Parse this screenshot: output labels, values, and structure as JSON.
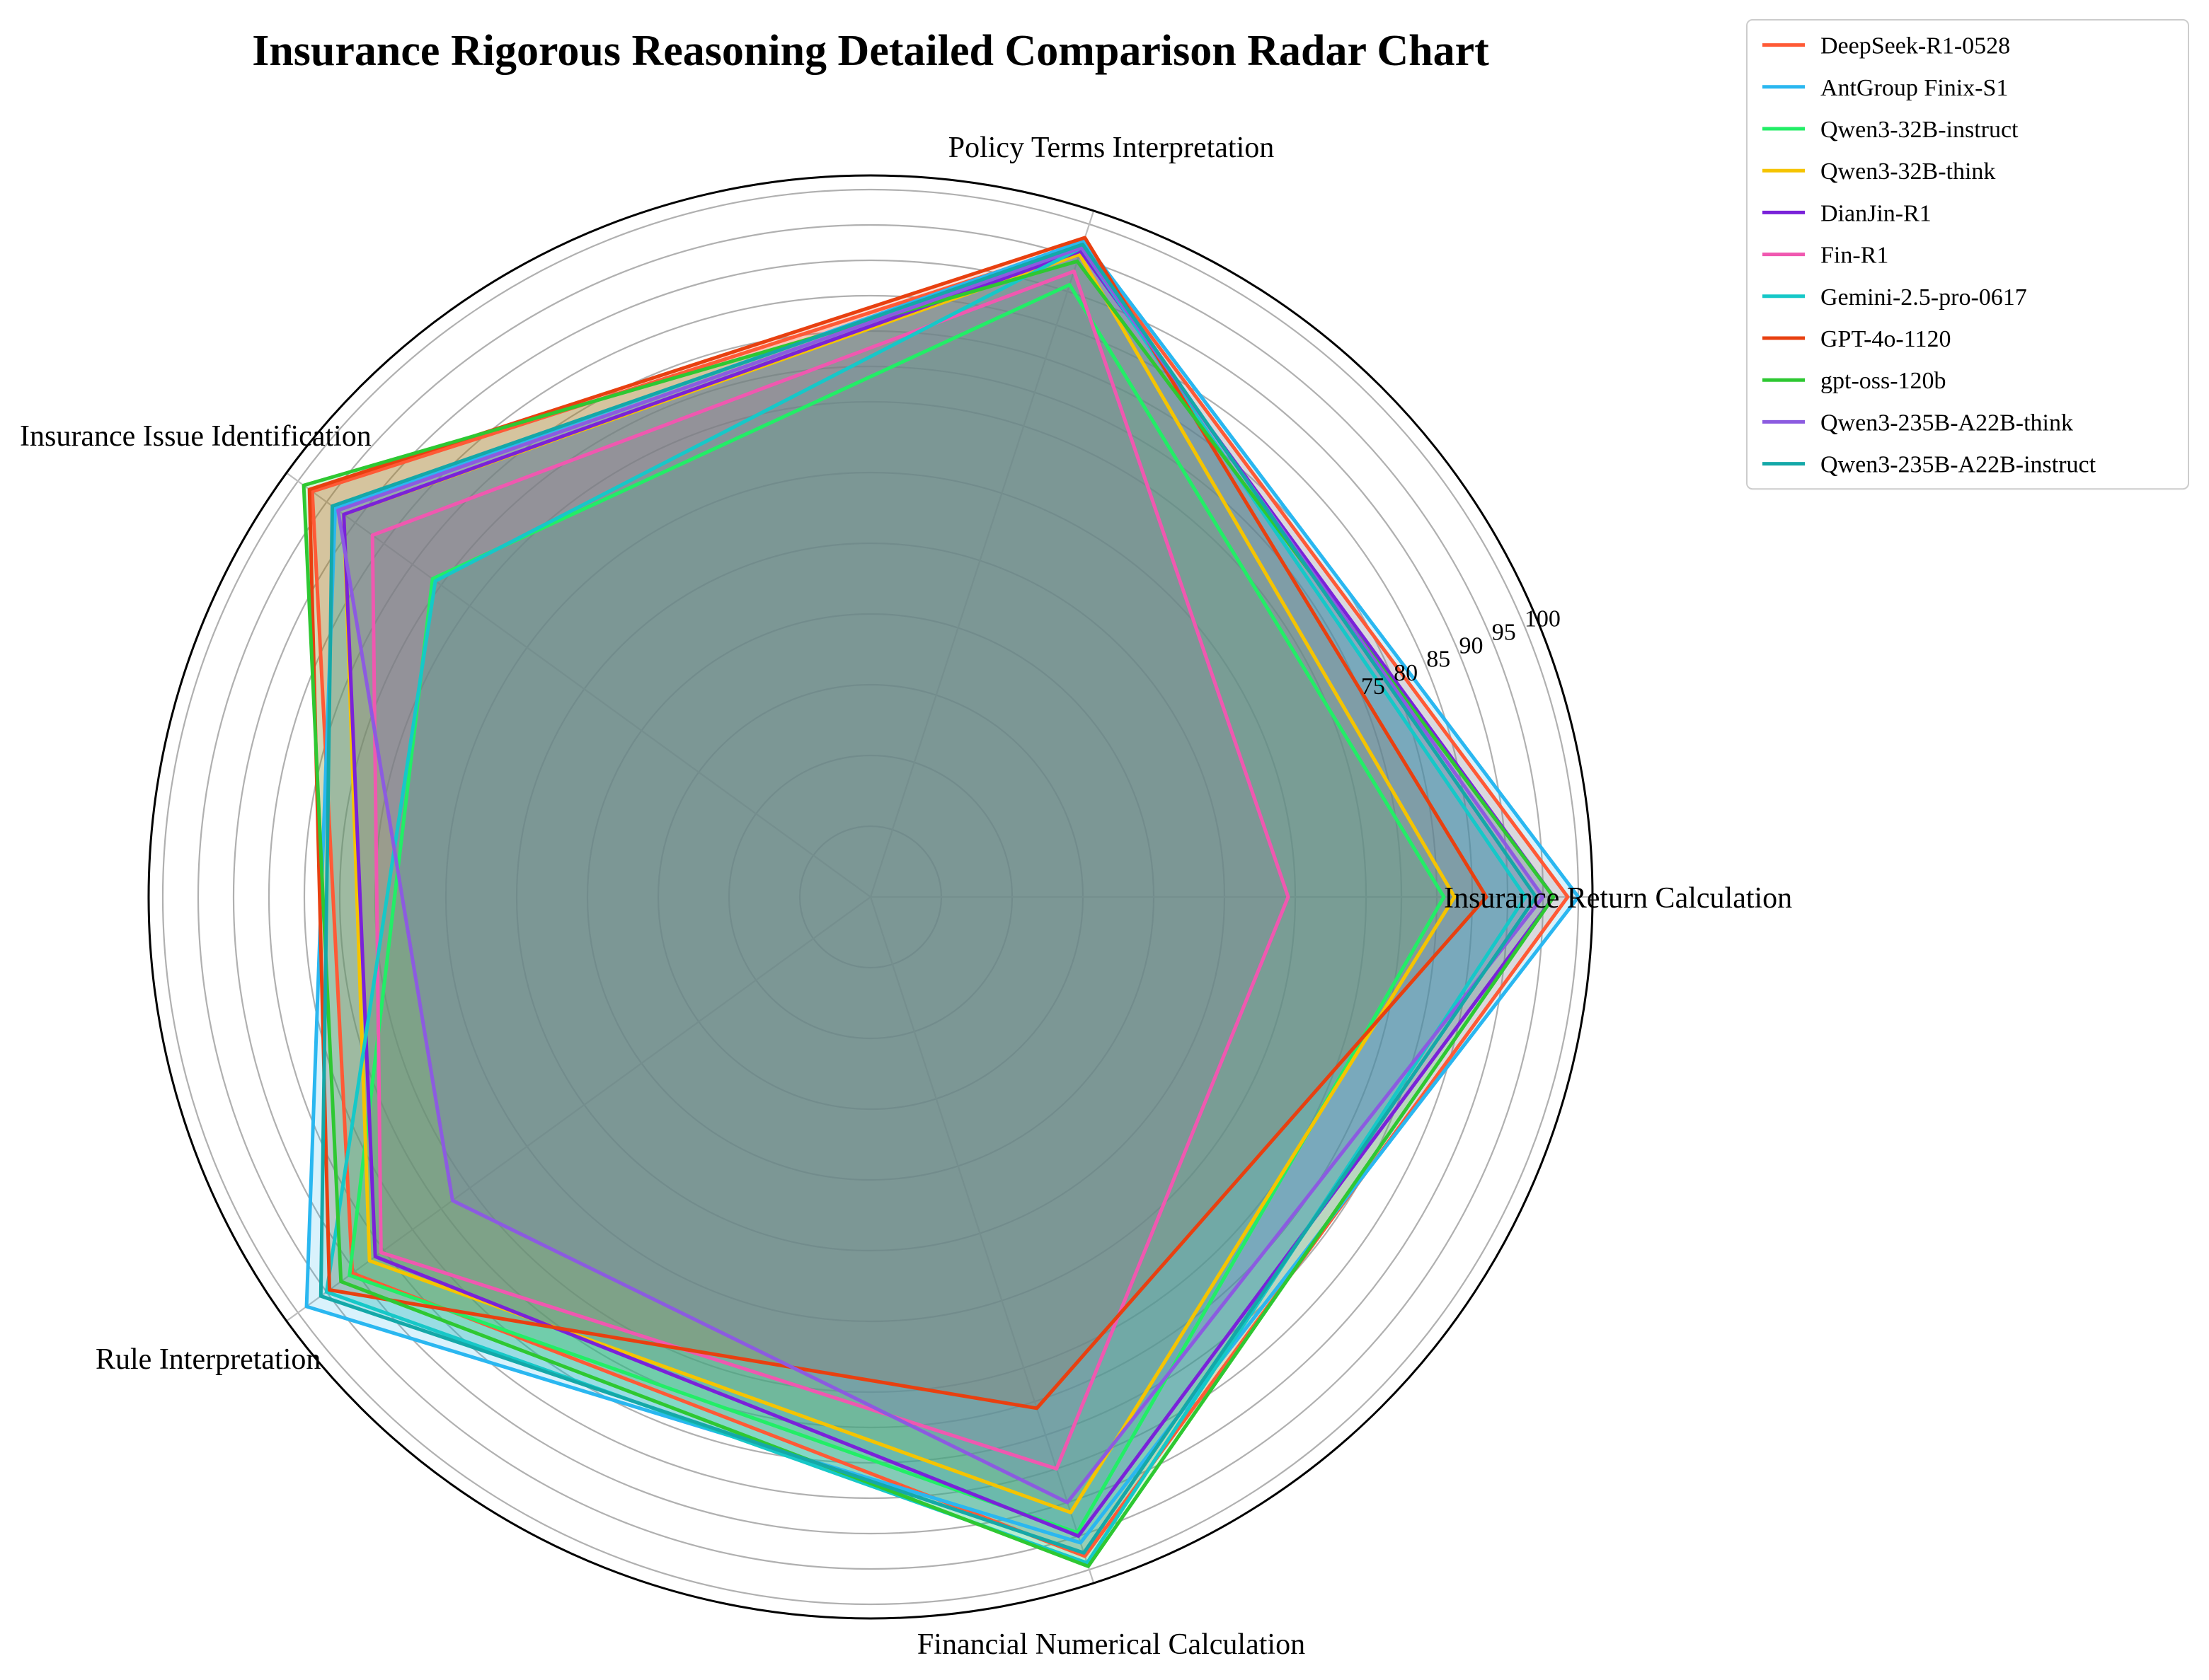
{
  "chart_data": {
    "type": "radar",
    "title": "Insurance Rigorous Reasoning Detailed Comparison Radar Chart",
    "axes": [
      "Insurance Return Calculation",
      "Policy Terms Interpretation",
      "Insurance Issue Identification",
      "Rule Interpretation",
      "Financial Numerical Calculation"
    ],
    "r_ticks": [
      75,
      80,
      85,
      90,
      95,
      100
    ],
    "r_tick_labels": [
      "75",
      "80",
      "85",
      "90",
      "95",
      "100"
    ],
    "r_range": [
      0,
      102
    ],
    "grid": true,
    "legend_position": "top-right, outside",
    "series": [
      {
        "name": "DeepSeek-R1-0528",
        "color": "#ff5a36",
        "values": [
          98.5,
          97.0,
          97.5,
          90.5,
          98.0
        ]
      },
      {
        "name": "AntGroup Finix-S1",
        "color": "#2ab7f0",
        "values": [
          100.0,
          97.5,
          93.5,
          98.5,
          96.0
        ]
      },
      {
        "name": "Qwen3-32B-instruct",
        "color": "#22ee66",
        "values": [
          81.0,
          91.0,
          76.5,
          91.0,
          94.5
        ]
      },
      {
        "name": "Qwen3-32B-think",
        "color": "#f5c400",
        "values": [
          82.5,
          95.5,
          92.0,
          87.5,
          91.5
        ]
      },
      {
        "name": "DianJin-R1",
        "color": "#7a22d9",
        "values": [
          96.5,
          96.0,
          92.0,
          86.5,
          95.0
        ]
      },
      {
        "name": "Fin-R1",
        "color": "#f058b0",
        "values": [
          59.0,
          93.0,
          87.0,
          85.5,
          85.0
        ]
      },
      {
        "name": "Gemini-2.5-pro-0617",
        "color": "#16c8c8",
        "values": [
          92.5,
          96.5,
          76.0,
          95.0,
          99.0
        ]
      },
      {
        "name": "GPT-4o-1120",
        "color": "#e84010",
        "values": [
          87.0,
          98.0,
          98.0,
          94.5,
          76.0
        ]
      },
      {
        "name": "gpt-oss-120b",
        "color": "#2ec832",
        "values": [
          96.5,
          94.5,
          99.0,
          92.5,
          99.5
        ]
      },
      {
        "name": "Qwen3-235B-A22B-think",
        "color": "#8c5be0",
        "values": [
          95.0,
          96.5,
          93.0,
          73.0,
          90.0
        ]
      },
      {
        "name": "Qwen3-235B-A22B-instruct",
        "color": "#14a8a8",
        "values": [
          94.0,
          97.0,
          94.0,
          96.0,
          97.5
        ]
      }
    ]
  }
}
